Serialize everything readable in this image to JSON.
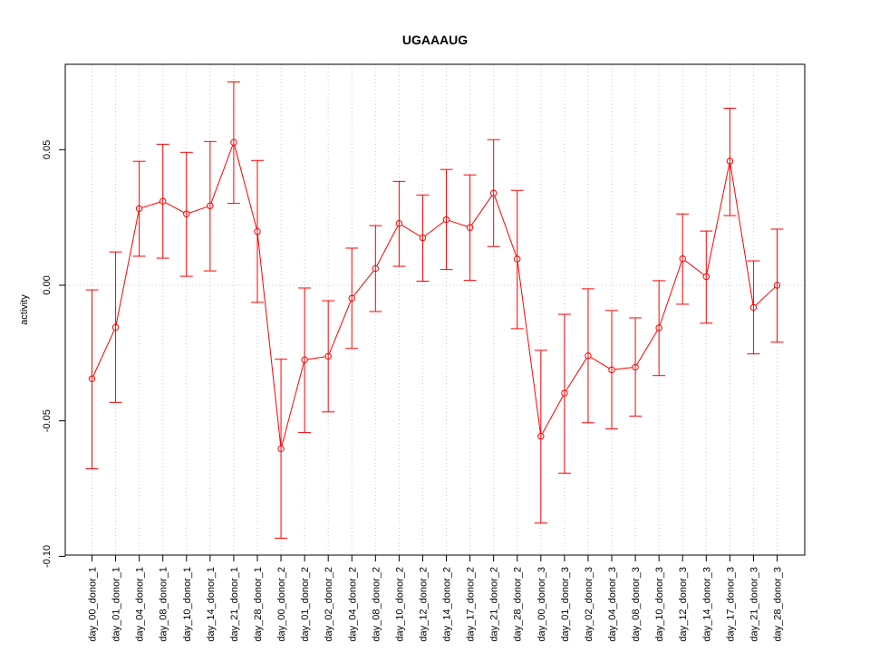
{
  "chart_data": {
    "type": "line",
    "title": "UGAAAUG",
    "xlabel": "",
    "ylabel": "activity",
    "categories": [
      "day_00_donor_1",
      "day_01_donor_1",
      "day_04_donor_1",
      "day_08_donor_1",
      "day_10_donor_1",
      "day_14_donor_1",
      "day_21_donor_1",
      "day_28_donor_1",
      "day_00_donor_2",
      "day_01_donor_2",
      "day_02_donor_2",
      "day_04_donor_2",
      "day_08_donor_2",
      "day_10_donor_2",
      "day_12_donor_2",
      "day_14_donor_2",
      "day_17_donor_2",
      "day_21_donor_2",
      "day_28_donor_2",
      "day_00_donor_3",
      "day_01_donor_3",
      "day_02_donor_3",
      "day_04_donor_3",
      "day_08_donor_3",
      "day_10_donor_3",
      "day_12_donor_3",
      "day_14_donor_3",
      "day_17_donor_3",
      "day_21_donor_3",
      "day_28_donor_3"
    ],
    "series": [
      {
        "values": [
          -0.0345,
          -0.0155,
          0.0283,
          0.031,
          0.0263,
          0.0293,
          0.0527,
          0.0198,
          -0.0603,
          -0.0275,
          -0.0262,
          -0.0048,
          0.0062,
          0.0228,
          0.0175,
          0.0242,
          0.0213,
          0.034,
          0.0097,
          -0.0557,
          -0.0398,
          -0.026,
          -0.0312,
          -0.0302,
          -0.0157,
          0.0098,
          0.0032,
          0.0458,
          -0.0082,
          0.0
        ],
        "lower": [
          -0.0677,
          -0.0432,
          0.0107,
          0.01,
          0.0033,
          0.0053,
          0.0302,
          -0.0063,
          -0.0933,
          -0.0543,
          -0.0467,
          -0.0233,
          -0.0097,
          0.007,
          0.0015,
          0.0058,
          0.0018,
          0.0143,
          -0.016,
          -0.0877,
          -0.0693,
          -0.0507,
          -0.053,
          -0.0483,
          -0.0333,
          -0.007,
          -0.014,
          0.0257,
          -0.0253,
          -0.021
        ],
        "upper": [
          -0.0017,
          0.0123,
          0.0457,
          0.052,
          0.049,
          0.053,
          0.075,
          0.046,
          -0.0273,
          -0.001,
          -0.0057,
          0.0137,
          0.022,
          0.0383,
          0.0333,
          0.0427,
          0.0407,
          0.0537,
          0.035,
          -0.024,
          -0.0107,
          -0.0013,
          -0.0093,
          -0.012,
          0.0017,
          0.0263,
          0.02,
          0.0653,
          0.009,
          0.0207
        ],
        "color": "#ff0000"
      }
    ],
    "ylim": [
      -0.1,
      0.082
    ],
    "yticks": [
      -0.1,
      -0.05,
      0.0,
      0.05
    ],
    "ytick_labels": [
      "-0.10",
      "-0.05",
      "0.00",
      "0.05"
    ],
    "grid": true,
    "grid_color": "#c8c8c8",
    "axis_color": "#000000"
  }
}
